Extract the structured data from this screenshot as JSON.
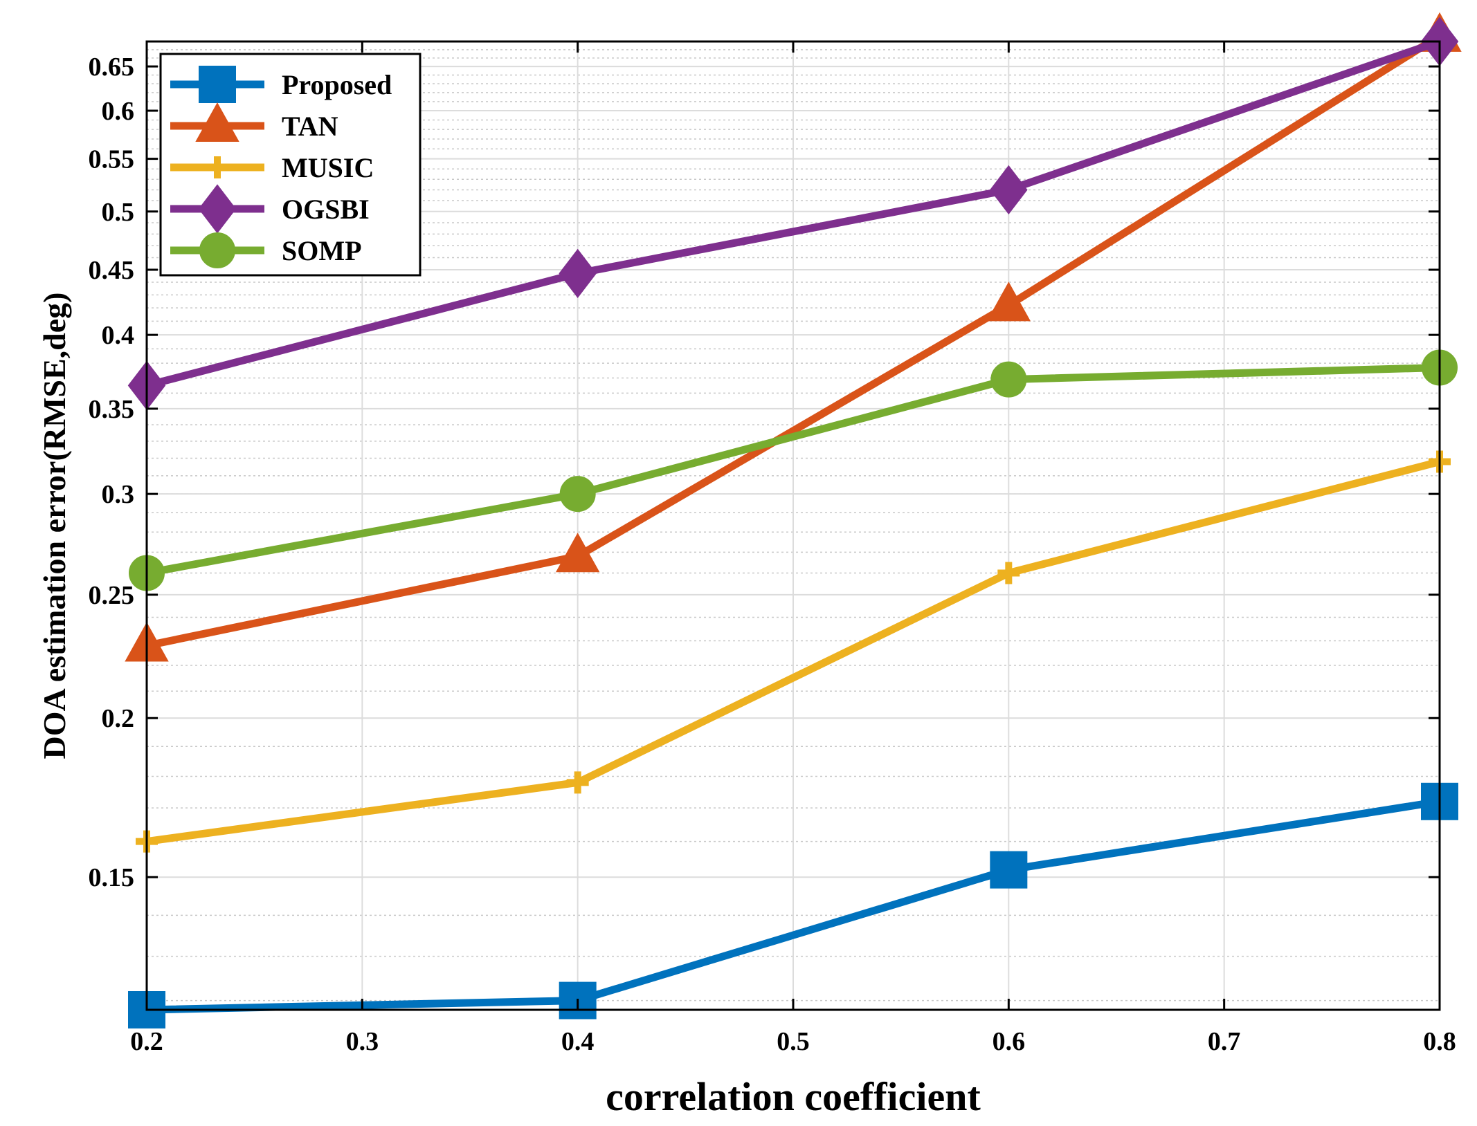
{
  "chart_data": {
    "type": "line",
    "xlabel": "correlation coefficient",
    "ylabel": "DOA estimation error(RMSE,deg)",
    "yscale": "log",
    "xlim": [
      0.2,
      0.8
    ],
    "ylim": [
      0.118,
      0.68
    ],
    "grid": "on",
    "legend_position": "top-left",
    "x_ticks": [
      0.2,
      0.3,
      0.4,
      0.5,
      0.6,
      0.7,
      0.8
    ],
    "x_tick_labels": [
      "0.2",
      "0.3",
      "0.4",
      "0.5",
      "0.6",
      "0.7",
      "0.8"
    ],
    "y_ticks": [
      0.15,
      0.2,
      0.25,
      0.3,
      0.35,
      0.4,
      0.45,
      0.5,
      0.55,
      0.6,
      0.65
    ],
    "y_tick_labels": [
      "0.15",
      "0.2",
      "0.25",
      "0.3",
      "0.35",
      "0.4",
      "0.45",
      "0.5",
      "0.55",
      "0.6",
      "0.65"
    ],
    "x": [
      0.2,
      0.4,
      0.6,
      0.8
    ],
    "series": [
      {
        "name": "Proposed",
        "color": "#0072BD",
        "marker": "square",
        "values": [
          0.118,
          0.12,
          0.152,
          0.172
        ]
      },
      {
        "name": "TAN",
        "color": "#D95319",
        "marker": "triangle",
        "values": [
          0.228,
          0.268,
          0.422,
          0.687
        ]
      },
      {
        "name": "MUSIC",
        "color": "#EDB120",
        "marker": "plus",
        "values": [
          0.16,
          0.178,
          0.26,
          0.318
        ]
      },
      {
        "name": "OGSBI",
        "color": "#7E2F8E",
        "marker": "diamond",
        "values": [
          0.365,
          0.447,
          0.52,
          0.68
        ]
      },
      {
        "name": "SOMP",
        "color": "#77AC30",
        "marker": "circle",
        "values": [
          0.26,
          0.3,
          0.369,
          0.377
        ]
      }
    ]
  }
}
